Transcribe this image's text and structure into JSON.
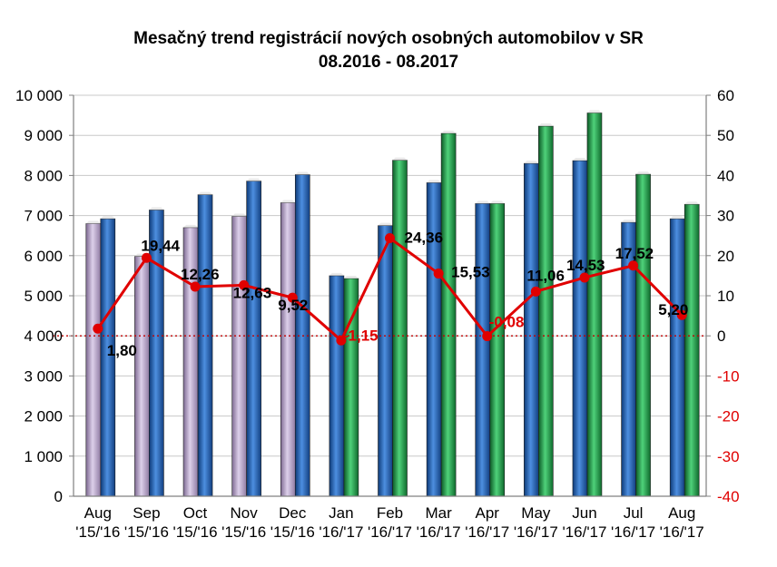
{
  "chart_data": {
    "type": "bar",
    "title": "Mesačný  trend registrácií  nových osobných automobilov  v SR",
    "subtitle": "08.2016  - 08.2017",
    "categories": [
      [
        "Aug",
        "'15/'16"
      ],
      [
        "Sep",
        "'15/'16"
      ],
      [
        "Oct",
        "'15/'16"
      ],
      [
        "Nov",
        "'15/'16"
      ],
      [
        "Dec",
        "'15/'16"
      ],
      [
        "Jan",
        "'16/'17"
      ],
      [
        "Feb",
        "'16/'17"
      ],
      [
        "Mar",
        "'16/'17"
      ],
      [
        "Apr",
        "'16/'17"
      ],
      [
        "May",
        "'16/'17"
      ],
      [
        "Jun",
        "'16/'17"
      ],
      [
        "Jul",
        "'16/'17"
      ],
      [
        "Aug",
        "'16/'17"
      ]
    ],
    "series": [
      {
        "values": [
          6800,
          5980,
          6700,
          6980,
          7320,
          5500,
          6750,
          7820,
          7300,
          8300,
          8370,
          6830,
          6920
        ],
        "colors": [
          "#b9a3c9",
          "#b9a3c9",
          "#b9a3c9",
          "#b9a3c9",
          "#b9a3c9",
          "#1e5fb4",
          "#1e5fb4",
          "#1e5fb4",
          "#1e5fb4",
          "#1e5fb4",
          "#1e5fb4",
          "#1e5fb4",
          "#1e5fb4"
        ]
      },
      {
        "values": [
          6920,
          7140,
          7520,
          7860,
          8020,
          5430,
          8380,
          9050,
          7300,
          9230,
          9560,
          8030,
          7280
        ],
        "colors": [
          "#1e5fb4",
          "#1e5fb4",
          "#1e5fb4",
          "#1e5fb4",
          "#1e5fb4",
          "#1f9b4a",
          "#1f9b4a",
          "#1f9b4a",
          "#1f9b4a",
          "#1f9b4a",
          "#1f9b4a",
          "#1f9b4a",
          "#1f9b4a"
        ]
      },
      {
        "axis": "right",
        "type": "line",
        "color": "#e00000",
        "values": [
          1.8,
          19.44,
          12.26,
          12.63,
          9.52,
          -1.15,
          24.36,
          15.53,
          -0.08,
          11.06,
          14.53,
          17.52,
          5.2
        ],
        "labels": [
          "1,80",
          "19,44",
          "12,26",
          "12,63",
          "9,52",
          "-1,15",
          "24,36",
          "15,53",
          "-0,08",
          "11,06",
          "14,53",
          "17,52",
          "5,20"
        ]
      }
    ],
    "y_left": {
      "ylim": [
        0,
        10000
      ],
      "ticks": [
        0,
        1000,
        2000,
        3000,
        4000,
        5000,
        6000,
        7000,
        8000,
        9000,
        10000
      ],
      "tick_labels": [
        "0",
        "1 000",
        "2 000",
        "3 000",
        "4 000",
        "5 000",
        "6 000",
        "7 000",
        "8 000",
        "9 000",
        "10 000"
      ]
    },
    "y_right": {
      "ylim": [
        -40,
        60
      ],
      "ticks": [
        -40,
        -30,
        -20,
        -10,
        0,
        10,
        20,
        30,
        40,
        50,
        60
      ],
      "tick_labels": [
        "-40",
        "-30",
        "-20",
        "-10",
        "0",
        "10",
        "20",
        "30",
        "40",
        "50",
        "60"
      ]
    },
    "grid": true,
    "reference_line": {
      "axis": "right",
      "value": 0,
      "color": "#c00000",
      "style": "dotted"
    },
    "colors": {
      "grid": "#c8c8c8",
      "axis_line": "#808080",
      "negative_tick": "#e00000",
      "label_dark": "#000000"
    }
  }
}
